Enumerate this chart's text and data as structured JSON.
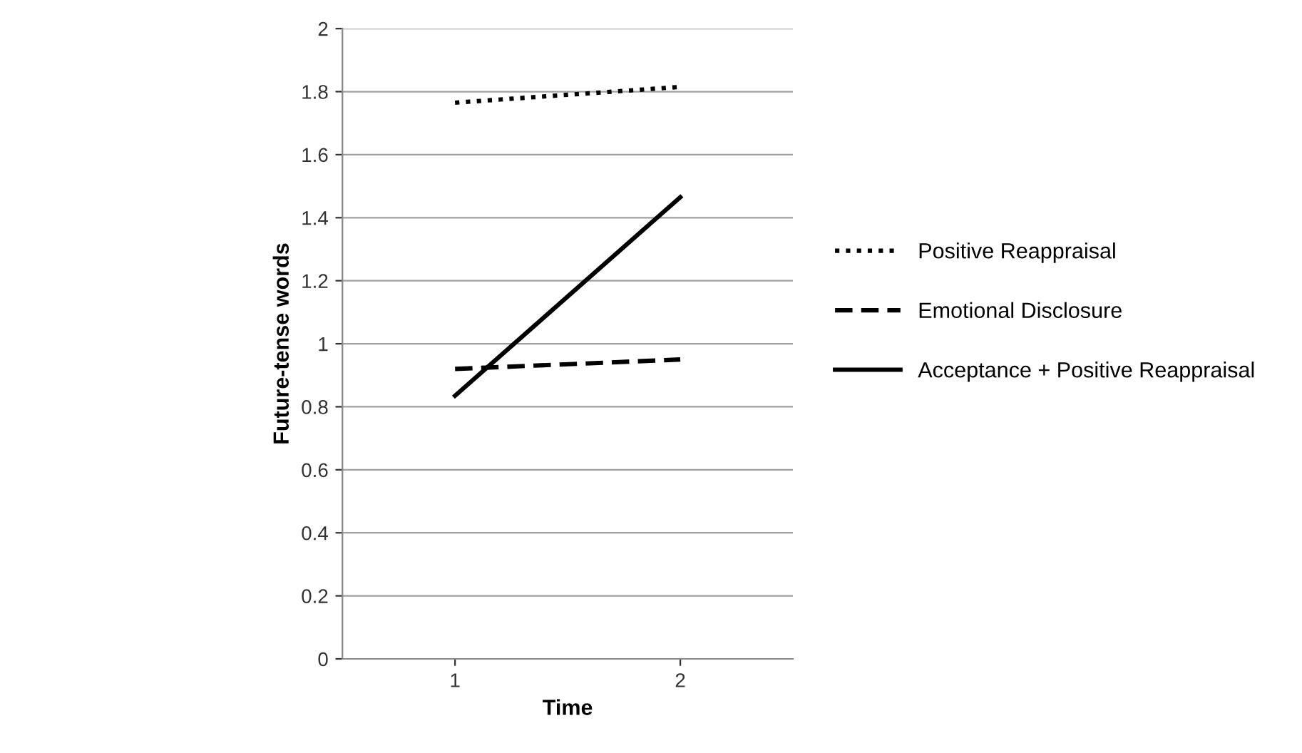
{
  "chart_data": {
    "type": "line",
    "xlabel": "Time",
    "ylabel": "Future-tense words",
    "categories": [
      "1",
      "2"
    ],
    "series": [
      {
        "name": "Positive Reappraisal",
        "color": "#000000",
        "line_style": "dotted",
        "values": [
          1.765,
          1.815
        ]
      },
      {
        "name": "Emotional Disclosure",
        "color": "#000000",
        "line_style": "dashed",
        "values": [
          0.92,
          0.95
        ]
      },
      {
        "name": "Acceptance + Positive Reappraisal",
        "color": "#000000",
        "line_style": "solid",
        "values": [
          0.835,
          1.465
        ]
      }
    ],
    "ylim": [
      0,
      2
    ],
    "yticks": [
      0,
      0.2,
      0.4,
      0.6,
      0.8,
      1,
      1.2,
      1.4,
      1.6,
      1.8,
      2
    ],
    "grid": "y",
    "legend": "right",
    "marker": "none"
  }
}
